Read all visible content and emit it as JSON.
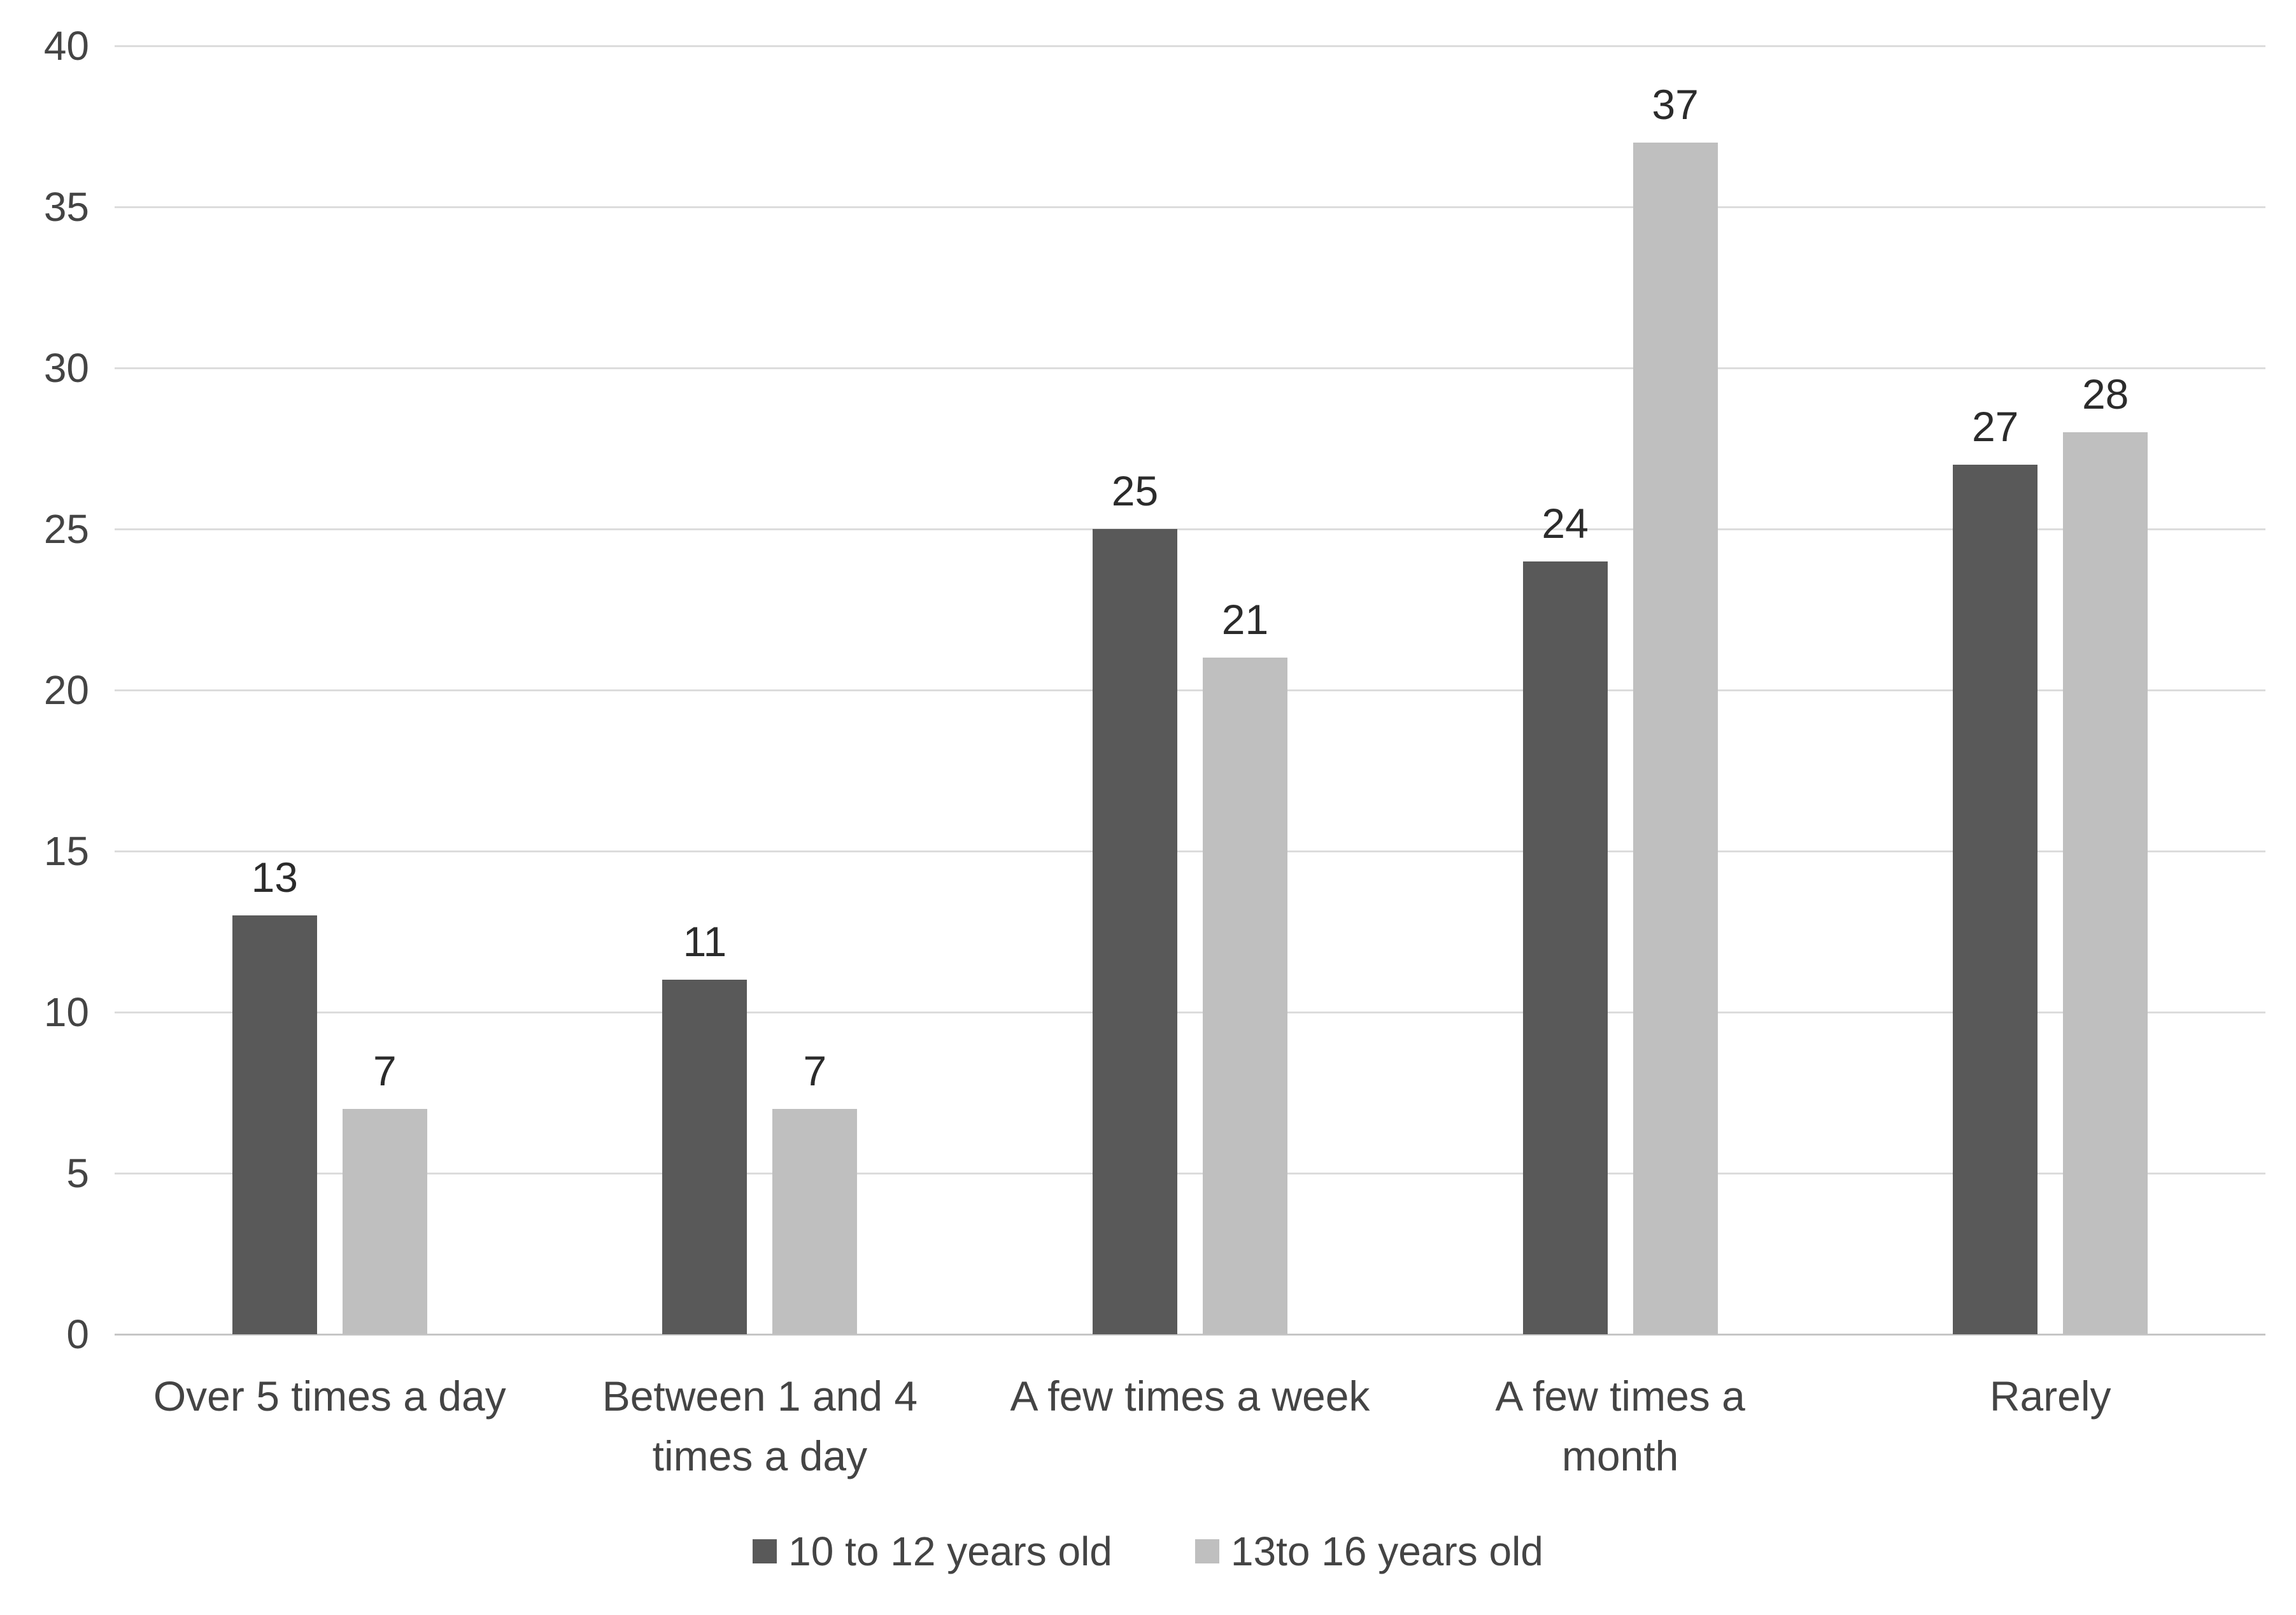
{
  "figure": {
    "background": "#ffffff"
  },
  "colors": {
    "series_dark": "#595959",
    "series_light": "#bfbfbf",
    "gridline": "#dcdcdc",
    "baseline": "#c6c6c6",
    "axis_text": "#444444",
    "value_label_text": "#2b2b2b"
  },
  "chart_data": {
    "type": "bar",
    "title": "",
    "xlabel": "",
    "ylabel": "",
    "categories": [
      "Over 5 times a day",
      "Between 1 and 4 times a day",
      "A few times a week",
      "A few times a month",
      "Rarely"
    ],
    "category_lines": [
      [
        "Over 5 times a day"
      ],
      [
        "Between 1 and 4",
        "times a day"
      ],
      [
        "A few times a week"
      ],
      [
        "A few times a",
        "month"
      ],
      [
        "Rarely"
      ]
    ],
    "series": [
      {
        "name": "10 to 12 years old",
        "color": "#595959",
        "values": [
          13,
          11,
          25,
          24,
          27
        ]
      },
      {
        "name": "13to 16 years old",
        "color": "#bfbfbf",
        "values": [
          7,
          7,
          21,
          37,
          28
        ]
      }
    ],
    "value_labels_shown": true,
    "ylim": [
      0,
      40
    ],
    "yticks": [
      0,
      5,
      10,
      15,
      20,
      25,
      30,
      35,
      40
    ],
    "grid": true,
    "legend_position": "bottom"
  }
}
